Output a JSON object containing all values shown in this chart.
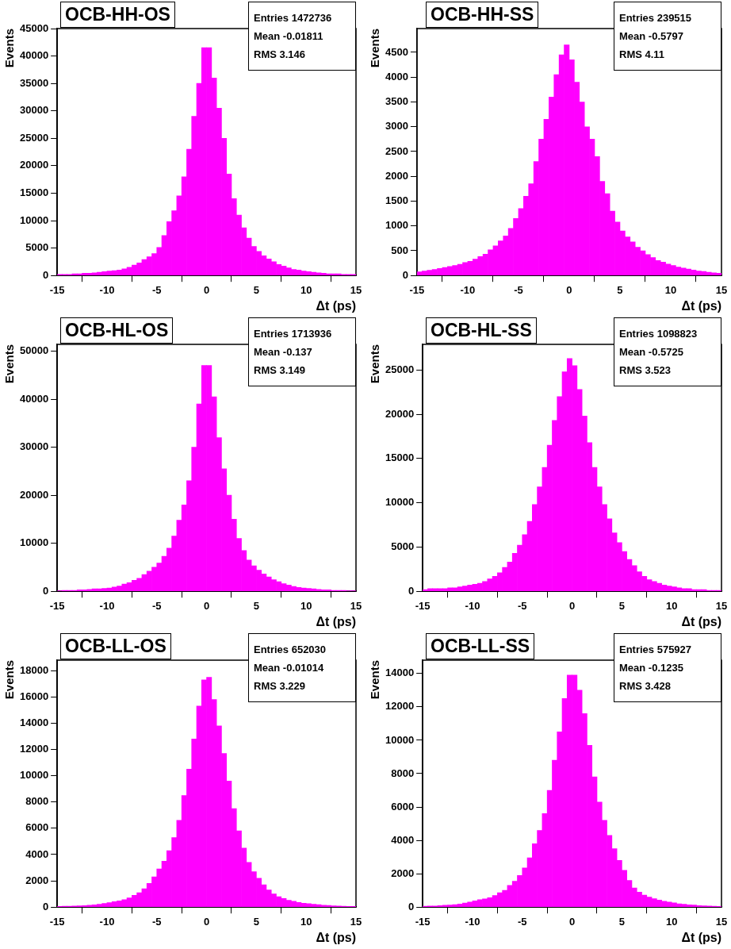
{
  "chart_data": [
    {
      "type": "histogram",
      "title": "OCB-HH-OS",
      "xlabel": "Δt (ps)",
      "ylabel": "Events",
      "annotations": [
        "Entries 1472736",
        "Mean -0.01811",
        "RMS 3.146"
      ],
      "color": "#ff00ff",
      "grid": false,
      "legend": false,
      "xlim": [
        -15,
        15
      ],
      "xticks": [
        -15,
        -10,
        -5,
        0,
        5,
        10,
        15
      ],
      "ylim": [
        0,
        45000
      ],
      "yticks": [
        0,
        5000,
        10000,
        15000,
        20000,
        25000,
        30000,
        35000,
        40000,
        45000
      ],
      "bins": [
        -15,
        -14.5,
        -14,
        -13.5,
        -13,
        -12.5,
        -12,
        -11.5,
        -11,
        -10.5,
        -10,
        -9.5,
        -9,
        -8.5,
        -8,
        -7.5,
        -7,
        -6.5,
        -6,
        -5.5,
        -5,
        -4.5,
        -4,
        -3.5,
        -3,
        -2.5,
        -2,
        -1.5,
        -1,
        -0.5,
        0,
        0.5,
        1,
        1.5,
        2,
        2.5,
        3,
        3.5,
        4,
        4.5,
        5,
        5.5,
        6,
        6.5,
        7,
        7.5,
        8,
        8.5,
        9,
        9.5,
        10,
        10.5,
        11,
        11.5,
        12,
        12.5,
        13,
        13.5,
        14,
        14.5,
        15
      ],
      "values": [
        200,
        200,
        200,
        300,
        300,
        400,
        400,
        500,
        600,
        700,
        800,
        900,
        1000,
        1200,
        1500,
        1900,
        2300,
        2900,
        3400,
        4000,
        5100,
        7300,
        9800,
        11800,
        14500,
        18000,
        23000,
        29000,
        35000,
        41500,
        41500,
        36000,
        30500,
        25000,
        18500,
        14000,
        11000,
        8700,
        6800,
        5300,
        4400,
        3600,
        3000,
        2500,
        2000,
        1700,
        1400,
        1100,
        1000,
        800,
        700,
        600,
        500,
        400,
        300,
        300,
        300,
        200,
        200,
        200
      ]
    },
    {
      "type": "histogram",
      "title": "OCB-HH-SS",
      "xlabel": "Δt (ps)",
      "ylabel": "Events",
      "annotations": [
        "Entries 239515",
        "Mean -0.5797",
        "RMS 4.11"
      ],
      "color": "#ff00ff",
      "grid": false,
      "legend": false,
      "xlim": [
        -15,
        15
      ],
      "xticks": [
        -15,
        -10,
        -5,
        0,
        5,
        10,
        15
      ],
      "ylim": [
        0,
        4980
      ],
      "yticks": [
        0,
        500,
        1000,
        1500,
        2000,
        2500,
        3000,
        3500,
        4000,
        4500
      ],
      "bins": [
        -15,
        -14.5,
        -14,
        -13.5,
        -13,
        -12.5,
        -12,
        -11.5,
        -11,
        -10.5,
        -10,
        -9.5,
        -9,
        -8.5,
        -8,
        -7.5,
        -7,
        -6.5,
        -6,
        -5.5,
        -5,
        -4.5,
        -4,
        -3.5,
        -3,
        -2.5,
        -2,
        -1.5,
        -1,
        -0.5,
        0,
        0.5,
        1,
        1.5,
        2,
        2.5,
        3,
        3.5,
        4,
        4.5,
        5,
        5.5,
        6,
        6.5,
        7,
        7.5,
        8,
        8.5,
        9,
        9.5,
        10,
        10.5,
        11,
        11.5,
        12,
        12.5,
        13,
        13.5,
        14,
        14.5,
        15
      ],
      "values": [
        75,
        90,
        105,
        120,
        140,
        160,
        180,
        200,
        225,
        260,
        285,
        330,
        380,
        430,
        520,
        600,
        700,
        800,
        950,
        1150,
        1350,
        1600,
        1850,
        2300,
        2750,
        3150,
        3600,
        4050,
        4450,
        4650,
        4350,
        3900,
        3500,
        3000,
        2750,
        2400,
        1900,
        1650,
        1300,
        1080,
        900,
        780,
        680,
        570,
        500,
        420,
        360,
        300,
        270,
        230,
        200,
        170,
        150,
        130,
        110,
        90,
        80,
        65,
        55,
        45
      ]
    },
    {
      "type": "histogram",
      "title": "OCB-HL-OS",
      "xlabel": "Δt (ps)",
      "ylabel": "Events",
      "annotations": [
        "Entries 1713936",
        "Mean -0.137",
        "RMS 3.149"
      ],
      "color": "#ff00ff",
      "grid": false,
      "legend": false,
      "xlim": [
        -15,
        15
      ],
      "xticks": [
        -15,
        -10,
        -5,
        0,
        5,
        10,
        15
      ],
      "ylim": [
        0,
        51400
      ],
      "yticks": [
        0,
        10000,
        20000,
        30000,
        40000,
        50000
      ],
      "bins": [
        -15,
        -14.5,
        -14,
        -13.5,
        -13,
        -12.5,
        -12,
        -11.5,
        -11,
        -10.5,
        -10,
        -9.5,
        -9,
        -8.5,
        -8,
        -7.5,
        -7,
        -6.5,
        -6,
        -5.5,
        -5,
        -4.5,
        -4,
        -3.5,
        -3,
        -2.5,
        -2,
        -1.5,
        -1,
        -0.5,
        0,
        0.5,
        1,
        1.5,
        2,
        2.5,
        3,
        3.5,
        4,
        4.5,
        5,
        5.5,
        6,
        6.5,
        7,
        7.5,
        8,
        8.5,
        9,
        9.5,
        10,
        10.5,
        11,
        11.5,
        12,
        12.5,
        13,
        13.5,
        14,
        14.5,
        15
      ],
      "values": [
        100,
        200,
        200,
        200,
        300,
        300,
        400,
        500,
        500,
        600,
        700,
        900,
        1100,
        1500,
        1800,
        2300,
        2700,
        3500,
        4200,
        5000,
        5900,
        7300,
        9000,
        11500,
        14800,
        18000,
        23000,
        30000,
        39000,
        47000,
        47000,
        40500,
        32000,
        25500,
        20000,
        15000,
        11000,
        8500,
        6500,
        5300,
        4400,
        3600,
        3000,
        2400,
        2000,
        1600,
        1300,
        1000,
        800,
        700,
        600,
        500,
        400,
        300,
        300,
        200,
        200,
        200,
        100,
        100
      ]
    },
    {
      "type": "histogram",
      "title": "OCB-HL-SS",
      "xlabel": "Δt (ps)",
      "ylabel": "Events",
      "annotations": [
        "Entries 1098823",
        "Mean -0.5725",
        "RMS 3.523"
      ],
      "color": "#ff00ff",
      "grid": false,
      "legend": false,
      "xlim": [
        -15,
        15
      ],
      "xticks": [
        -15,
        -10,
        -5,
        0,
        5,
        10,
        15
      ],
      "ylim": [
        0,
        27900
      ],
      "yticks": [
        0,
        5000,
        10000,
        15000,
        20000,
        25000
      ],
      "bins": [
        -15,
        -14.5,
        -14,
        -13.5,
        -13,
        -12.5,
        -12,
        -11.5,
        -11,
        -10.5,
        -10,
        -9.5,
        -9,
        -8.5,
        -8,
        -7.5,
        -7,
        -6.5,
        -6,
        -5.5,
        -5,
        -4.5,
        -4,
        -3.5,
        -3,
        -2.5,
        -2,
        -1.5,
        -1,
        -0.5,
        0,
        0.5,
        1,
        1.5,
        2,
        2.5,
        3,
        3.5,
        4,
        4.5,
        5,
        5.5,
        6,
        6.5,
        7,
        7.5,
        8,
        8.5,
        9,
        9.5,
        10,
        10.5,
        11,
        11.5,
        12,
        12.5,
        13,
        13.5,
        14,
        14.5,
        15
      ],
      "values": [
        200,
        300,
        300,
        300,
        300,
        400,
        400,
        500,
        600,
        700,
        800,
        900,
        1100,
        1400,
        1700,
        2100,
        2700,
        3300,
        4300,
        5200,
        6400,
        7900,
        9800,
        11800,
        14000,
        16500,
        19300,
        22000,
        24800,
        26300,
        25500,
        22800,
        19800,
        16800,
        14000,
        11800,
        9800,
        8200,
        6600,
        5500,
        4500,
        3600,
        2900,
        2200,
        1700,
        1300,
        1100,
        900,
        700,
        600,
        500,
        400,
        300,
        300,
        200,
        200,
        200,
        100,
        100,
        100
      ]
    },
    {
      "type": "histogram",
      "title": "OCB-LL-OS",
      "xlabel": "Δt (ps)",
      "ylabel": "Events",
      "annotations": [
        "Entries 652030",
        "Mean -0.01014",
        "RMS 3.229"
      ],
      "color": "#ff00ff",
      "grid": false,
      "legend": false,
      "xlim": [
        -15,
        15
      ],
      "xticks": [
        -15,
        -10,
        -5,
        0,
        5,
        10,
        15
      ],
      "ylim": [
        0,
        18800
      ],
      "yticks": [
        0,
        2000,
        4000,
        6000,
        8000,
        10000,
        12000,
        14000,
        16000,
        18000
      ],
      "bins": [
        -15,
        -14.5,
        -14,
        -13.5,
        -13,
        -12.5,
        -12,
        -11.5,
        -11,
        -10.5,
        -10,
        -9.5,
        -9,
        -8.5,
        -8,
        -7.5,
        -7,
        -6.5,
        -6,
        -5.5,
        -5,
        -4.5,
        -4,
        -3.5,
        -3,
        -2.5,
        -2,
        -1.5,
        -1,
        -0.5,
        0,
        0.5,
        1,
        1.5,
        2,
        2.5,
        3,
        3.5,
        4,
        4.5,
        5,
        5.5,
        6,
        6.5,
        7,
        7.5,
        8,
        8.5,
        9,
        9.5,
        10,
        10.5,
        11,
        11.5,
        12,
        12.5,
        13,
        13.5,
        14,
        14.5,
        15
      ],
      "values": [
        50,
        70,
        70,
        90,
        100,
        120,
        140,
        180,
        220,
        280,
        340,
        420,
        480,
        570,
        700,
        900,
        1100,
        1400,
        1800,
        2300,
        2900,
        3500,
        4300,
        5300,
        6600,
        8500,
        10500,
        12800,
        15300,
        17300,
        17500,
        15800,
        13800,
        11700,
        9600,
        7500,
        5800,
        4500,
        3400,
        2700,
        2200,
        1700,
        1300,
        1000,
        800,
        650,
        520,
        440,
        360,
        300,
        260,
        220,
        190,
        150,
        130,
        100,
        90,
        70,
        60,
        50
      ]
    },
    {
      "type": "histogram",
      "title": "OCB-LL-SS",
      "xlabel": "Δt (ps)",
      "ylabel": "Events",
      "annotations": [
        "Entries 575927",
        "Mean -0.1235",
        "RMS 3.428"
      ],
      "color": "#ff00ff",
      "grid": false,
      "legend": false,
      "xlim": [
        -15,
        15
      ],
      "xticks": [
        -15,
        -10,
        -5,
        0,
        5,
        10,
        15
      ],
      "ylim": [
        0,
        14800
      ],
      "yticks": [
        0,
        2000,
        4000,
        6000,
        8000,
        10000,
        12000,
        14000
      ],
      "bins": [
        -15,
        -14.5,
        -14,
        -13.5,
        -13,
        -12.5,
        -12,
        -11.5,
        -11,
        -10.5,
        -10,
        -9.5,
        -9,
        -8.5,
        -8,
        -7.5,
        -7,
        -6.5,
        -6,
        -5.5,
        -5,
        -4.5,
        -4,
        -3.5,
        -3,
        -2.5,
        -2,
        -1.5,
        -1,
        -0.5,
        0,
        0.5,
        1,
        1.5,
        2,
        2.5,
        3,
        3.5,
        4,
        4.5,
        5,
        5.5,
        6,
        6.5,
        7,
        7.5,
        8,
        8.5,
        9,
        9.5,
        10,
        10.5,
        11,
        11.5,
        12,
        12.5,
        13,
        13.5,
        14,
        14.5,
        15
      ],
      "values": [
        50,
        70,
        70,
        90,
        110,
        130,
        150,
        190,
        240,
        300,
        380,
        440,
        490,
        560,
        700,
        860,
        1000,
        1300,
        1550,
        1900,
        2350,
        2950,
        3800,
        4600,
        5600,
        7000,
        8800,
        10500,
        12500,
        13900,
        13900,
        13000,
        11600,
        9700,
        7800,
        6300,
        5200,
        4300,
        3500,
        2800,
        2200,
        1600,
        1150,
        900,
        720,
        600,
        500,
        420,
        350,
        300,
        250,
        200,
        170,
        140,
        120,
        90,
        80,
        60,
        55,
        45
      ]
    }
  ]
}
